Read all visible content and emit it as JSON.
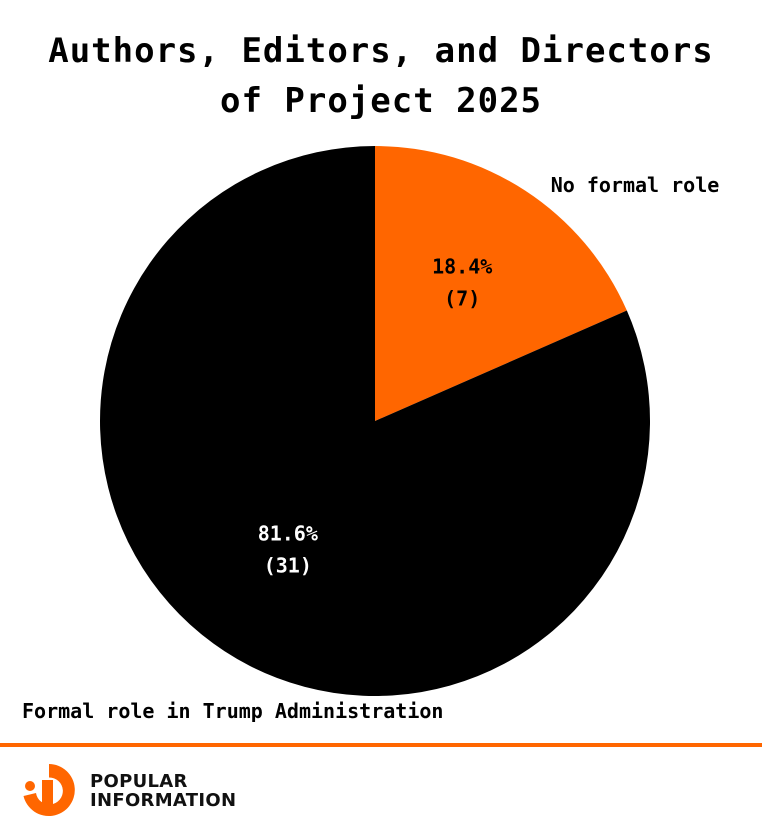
{
  "chart_data": {
    "type": "pie",
    "title": "Authors, Editors, and Directors of Project 2025",
    "title_lines": [
      "Authors, Editors, and Directors",
      "of Project 2025"
    ],
    "slices": [
      {
        "label": "No formal role",
        "value": 7,
        "percent_label": "18.4%",
        "count_label": "(7)",
        "color": "#ff6600"
      },
      {
        "label": "Formal role in Trump Administration",
        "value": 31,
        "percent_label": "81.6%",
        "count_label": "(31)",
        "color": "#000000"
      }
    ]
  },
  "brand": {
    "lines": [
      "POPULAR",
      "INFORMATION"
    ],
    "accent_color": "#ff6600"
  }
}
